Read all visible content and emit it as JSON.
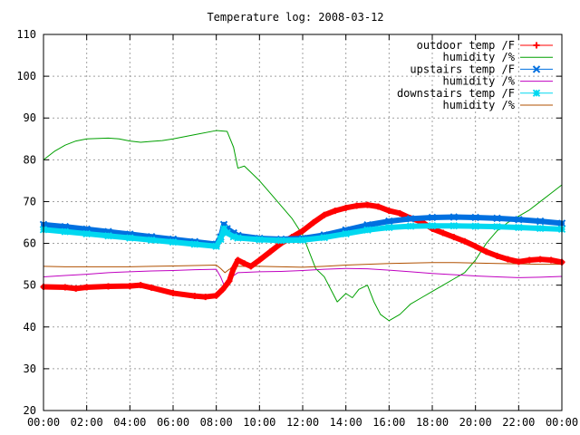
{
  "chart_data": {
    "type": "line",
    "title": "Temperature log: 2008-03-12",
    "xlabel": "",
    "ylabel": "",
    "xlim": [
      0,
      24
    ],
    "ylim": [
      20,
      110
    ],
    "grid": true,
    "legend_position": "top-right",
    "x_ticks": [
      {
        "value": 0,
        "label": "00:00"
      },
      {
        "value": 2,
        "label": "02:00"
      },
      {
        "value": 4,
        "label": "04:00"
      },
      {
        "value": 6,
        "label": "06:00"
      },
      {
        "value": 8,
        "label": "08:00"
      },
      {
        "value": 10,
        "label": "10:00"
      },
      {
        "value": 12,
        "label": "12:00"
      },
      {
        "value": 14,
        "label": "14:00"
      },
      {
        "value": 16,
        "label": "16:00"
      },
      {
        "value": 18,
        "label": "18:00"
      },
      {
        "value": 20,
        "label": "20:00"
      },
      {
        "value": 22,
        "label": "22:00"
      },
      {
        "value": 24,
        "label": "00:00"
      }
    ],
    "y_ticks": [
      {
        "value": 20,
        "label": "20"
      },
      {
        "value": 30,
        "label": "30"
      },
      {
        "value": 40,
        "label": "40"
      },
      {
        "value": 50,
        "label": "50"
      },
      {
        "value": 60,
        "label": "60"
      },
      {
        "value": 70,
        "label": "70"
      },
      {
        "value": 80,
        "label": "80"
      },
      {
        "value": 90,
        "label": "90"
      },
      {
        "value": 100,
        "label": "100"
      },
      {
        "value": 110,
        "label": "110"
      }
    ],
    "series": [
      {
        "name": "outdoor temp /F",
        "color": "#ff0000",
        "marker": "plus",
        "x": [
          0,
          1,
          1.5,
          2,
          3,
          4,
          4.5,
          5,
          6,
          7,
          7.5,
          8,
          8.3,
          8.6,
          8.8,
          9,
          9.3,
          9.6,
          10,
          10.5,
          11,
          11.5,
          12,
          12.5,
          13,
          13.5,
          14,
          14.5,
          15,
          15.5,
          16,
          16.5,
          17,
          17.5,
          18,
          18.5,
          19,
          19.5,
          20,
          20.5,
          21,
          21.5,
          22,
          22.5,
          23,
          23.5,
          24
        ],
        "y": [
          49.6,
          49.5,
          49.2,
          49.5,
          49.7,
          49.8,
          50,
          49.4,
          48.1,
          47.4,
          47.2,
          47.5,
          49,
          51,
          54,
          56,
          55.2,
          54.5,
          56,
          58,
          60,
          61.5,
          63,
          65,
          66.8,
          67.8,
          68.5,
          69,
          69.2,
          68.8,
          67.8,
          67.2,
          66,
          65.2,
          63.5,
          62.5,
          61.5,
          60.5,
          59.3,
          58,
          57,
          56.2,
          55.6,
          56,
          56.2,
          56,
          55.5
        ]
      },
      {
        "name": "humidity /%",
        "color": "#00a000",
        "marker": "none",
        "x": [
          0,
          0.5,
          1,
          1.5,
          2,
          3,
          3.5,
          4,
          4.5,
          5,
          5.5,
          6,
          7,
          8,
          8.5,
          8.8,
          9,
          9.3,
          9.6,
          10,
          10.5,
          11,
          11.5,
          12,
          12.3,
          12.6,
          13,
          13.3,
          13.6,
          14,
          14.3,
          14.6,
          15,
          15.3,
          15.6,
          16,
          16.5,
          17,
          17.5,
          18,
          18.5,
          19,
          19.5,
          20,
          20.5,
          21,
          21.5,
          22,
          22.5,
          23,
          23.5,
          24
        ],
        "y": [
          80,
          82,
          83.5,
          84.5,
          85,
          85.2,
          85,
          84.5,
          84.2,
          84.4,
          84.6,
          85,
          86,
          87,
          86.8,
          83,
          78,
          78.5,
          77,
          75,
          72,
          69,
          66,
          62,
          58,
          54,
          52,
          49,
          46,
          48,
          47,
          49,
          50,
          46,
          43,
          41.5,
          43,
          45.5,
          47,
          48.5,
          50,
          51.5,
          53,
          56,
          60,
          63,
          65,
          66.5,
          68,
          70,
          72,
          74
        ]
      },
      {
        "name": "upstairs temp /F",
        "color": "#0070e0",
        "marker": "cross",
        "x": [
          0,
          1,
          2,
          3,
          4,
          5,
          6,
          7,
          8,
          8.2,
          8.35,
          8.5,
          8.8,
          9,
          10,
          11,
          12,
          13,
          14,
          15,
          16,
          17,
          18,
          19,
          20,
          21,
          22,
          23,
          24
        ],
        "y": [
          64.5,
          64,
          63.4,
          62.8,
          62.2,
          61.6,
          61,
          60.4,
          59.8,
          61.5,
          64.5,
          63.5,
          62.5,
          61.9,
          61.2,
          61,
          61.2,
          62,
          63.2,
          64.4,
          65.3,
          65.9,
          66.2,
          66.3,
          66.2,
          66,
          65.7,
          65.3,
          64.8
        ]
      },
      {
        "name": "humidity /%",
        "color": "#c000c0",
        "marker": "none",
        "x": [
          0,
          1,
          2,
          3,
          4,
          5,
          6,
          7,
          8,
          8.2,
          8.4,
          8.6,
          9,
          10,
          11,
          12,
          13,
          14,
          15,
          16,
          17,
          18,
          19,
          20,
          21,
          22,
          23,
          24
        ],
        "y": [
          52,
          52.3,
          52.6,
          53,
          53.2,
          53.4,
          53.5,
          53.7,
          53.8,
          52,
          49.5,
          51.5,
          53,
          53.2,
          53.3,
          53.5,
          53.8,
          54,
          53.9,
          53.6,
          53.2,
          52.8,
          52.5,
          52.2,
          52,
          51.8,
          51.9,
          52.1
        ]
      },
      {
        "name": "downstairs temp /F",
        "color": "#00d8f0",
        "marker": "star",
        "x": [
          0,
          1,
          2,
          3,
          4,
          5,
          6,
          7,
          8,
          8.2,
          8.35,
          8.5,
          8.8,
          9,
          10,
          11,
          12,
          13,
          14,
          15,
          16,
          17,
          18,
          19,
          20,
          21,
          22,
          23,
          24
        ],
        "y": [
          63.3,
          62.8,
          62.3,
          61.8,
          61.3,
          60.8,
          60.3,
          59.8,
          59.3,
          61,
          63.5,
          62.5,
          61.6,
          61.3,
          60.9,
          60.7,
          60.8,
          61.4,
          62.3,
          63.2,
          63.8,
          64.1,
          64.2,
          64.2,
          64.1,
          64,
          63.8,
          63.6,
          63.4
        ]
      },
      {
        "name": "humidity /%",
        "color": "#b05000",
        "marker": "none",
        "x": [
          0,
          1,
          2,
          3,
          4,
          5,
          6,
          7,
          8,
          8.2,
          8.4,
          8.6,
          9,
          10,
          11,
          12,
          13,
          14,
          15,
          16,
          17,
          18,
          19,
          20,
          21,
          22,
          23,
          24
        ],
        "y": [
          54.5,
          54.4,
          54.4,
          54.4,
          54.4,
          54.5,
          54.6,
          54.7,
          54.8,
          54,
          53,
          53.8,
          54.5,
          54.5,
          54.4,
          54.3,
          54.5,
          54.8,
          55,
          55.2,
          55.3,
          55.4,
          55.4,
          55.3,
          55.2,
          55.1,
          55,
          55
        ]
      }
    ]
  }
}
